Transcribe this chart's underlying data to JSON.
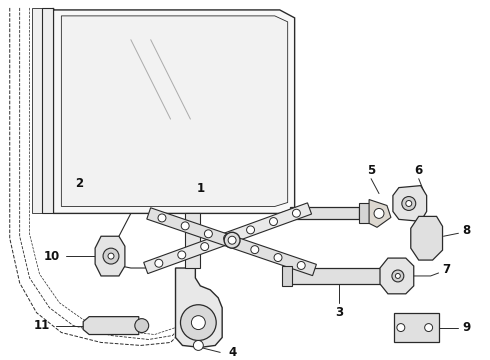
{
  "bg_color": "#ffffff",
  "lc": "#2a2a2a",
  "lw": 0.9,
  "fig_w": 4.9,
  "fig_h": 3.6
}
